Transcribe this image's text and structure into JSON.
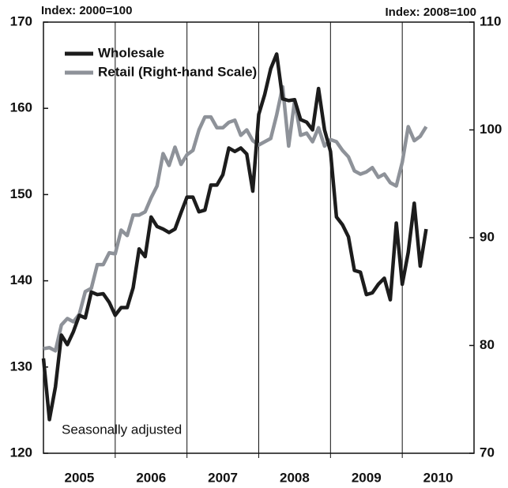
{
  "chart_data": {
    "type": "line",
    "y_label": "Index: 2000=100",
    "y2_label": "Index: 2008=100",
    "annotation": "Seasonally adjusted",
    "x": [
      2005,
      2005.083,
      2005.167,
      2005.25,
      2005.333,
      2005.417,
      2005.5,
      2005.583,
      2005.667,
      2005.75,
      2005.833,
      2005.917,
      2006,
      2006.083,
      2006.167,
      2006.25,
      2006.333,
      2006.417,
      2006.5,
      2006.583,
      2006.667,
      2006.75,
      2006.833,
      2006.917,
      2007,
      2007.083,
      2007.167,
      2007.25,
      2007.333,
      2007.417,
      2007.5,
      2007.583,
      2007.667,
      2007.75,
      2007.833,
      2007.917,
      2008,
      2008.083,
      2008.167,
      2008.25,
      2008.333,
      2008.417,
      2008.5,
      2008.583,
      2008.667,
      2008.75,
      2008.833,
      2008.917,
      2009,
      2009.083,
      2009.167,
      2009.25,
      2009.333,
      2009.417,
      2009.5,
      2009.583,
      2009.667,
      2009.75,
      2009.833,
      2009.917,
      2010,
      2010.083,
      2010.167,
      2010.25,
      2010.333
    ],
    "series": [
      {
        "name": "Wholesale",
        "color": "#1c1c1c",
        "values": [
          131,
          123.9,
          127.7,
          133.7,
          132.6,
          134.1,
          136,
          135.7,
          138.7,
          138.4,
          138.5,
          137.5,
          136,
          136.9,
          136.9,
          139.2,
          143.7,
          142.8,
          147.4,
          146.3,
          146,
          145.6,
          146,
          147.9,
          149.7,
          149.7,
          148,
          148.2,
          151.1,
          151.1,
          152.3,
          155.4,
          155,
          155.4,
          154.7,
          150.4,
          159.3,
          161.6,
          164.6,
          166.3,
          161.1,
          160.9,
          161,
          158.7,
          158.4,
          157.5,
          162.3,
          157.5,
          155,
          147.4,
          146.5,
          145.1,
          141.2,
          141,
          138.4,
          138.6,
          139.6,
          140.3,
          137.8,
          146.7,
          139.6,
          143.3,
          149,
          141.7,
          146
        ]
      },
      {
        "name": "Retail (Right-hand Scale)",
        "color": "#8e9299",
        "axis": "y2",
        "values": [
          79.7,
          79.8,
          79.5,
          81.9,
          82.5,
          82.2,
          82.9,
          85,
          85.3,
          87.5,
          87.5,
          88.6,
          88.5,
          90.7,
          90.2,
          92.1,
          92.1,
          92.4,
          93.7,
          94.8,
          97.8,
          96.7,
          98.4,
          96.8,
          97.7,
          98.1,
          100,
          101.2,
          101.2,
          100.2,
          100.2,
          100.7,
          100.9,
          99.5,
          100,
          99,
          98.6,
          98.9,
          99.2,
          101.4,
          104,
          98.5,
          102.7,
          99.5,
          99.7,
          98.9,
          100.2,
          98.5,
          99.1,
          98.9,
          98.1,
          97.5,
          96.2,
          95.9,
          96.1,
          96.5,
          95.6,
          95.9,
          95.1,
          94.8,
          97,
          100.3,
          99,
          99.4,
          100.3
        ]
      }
    ],
    "xlim": [
      2005,
      2011
    ],
    "xticks": [
      {
        "value": 2005.5,
        "label": "2005"
      },
      {
        "value": 2006.5,
        "label": "2006"
      },
      {
        "value": 2007.5,
        "label": "2007"
      },
      {
        "value": 2008.5,
        "label": "2008"
      },
      {
        "value": 2009.5,
        "label": "2009"
      },
      {
        "value": 2010.5,
        "label": "2010"
      }
    ],
    "xgrid": [
      2006,
      2007,
      2008,
      2009,
      2010
    ],
    "ylim": [
      120,
      170
    ],
    "yticks": [
      120,
      130,
      140,
      150,
      160,
      170
    ],
    "y2lim": [
      70,
      110
    ],
    "y2ticks": [
      70,
      80,
      90,
      100,
      110
    ],
    "legend": "upper left"
  }
}
